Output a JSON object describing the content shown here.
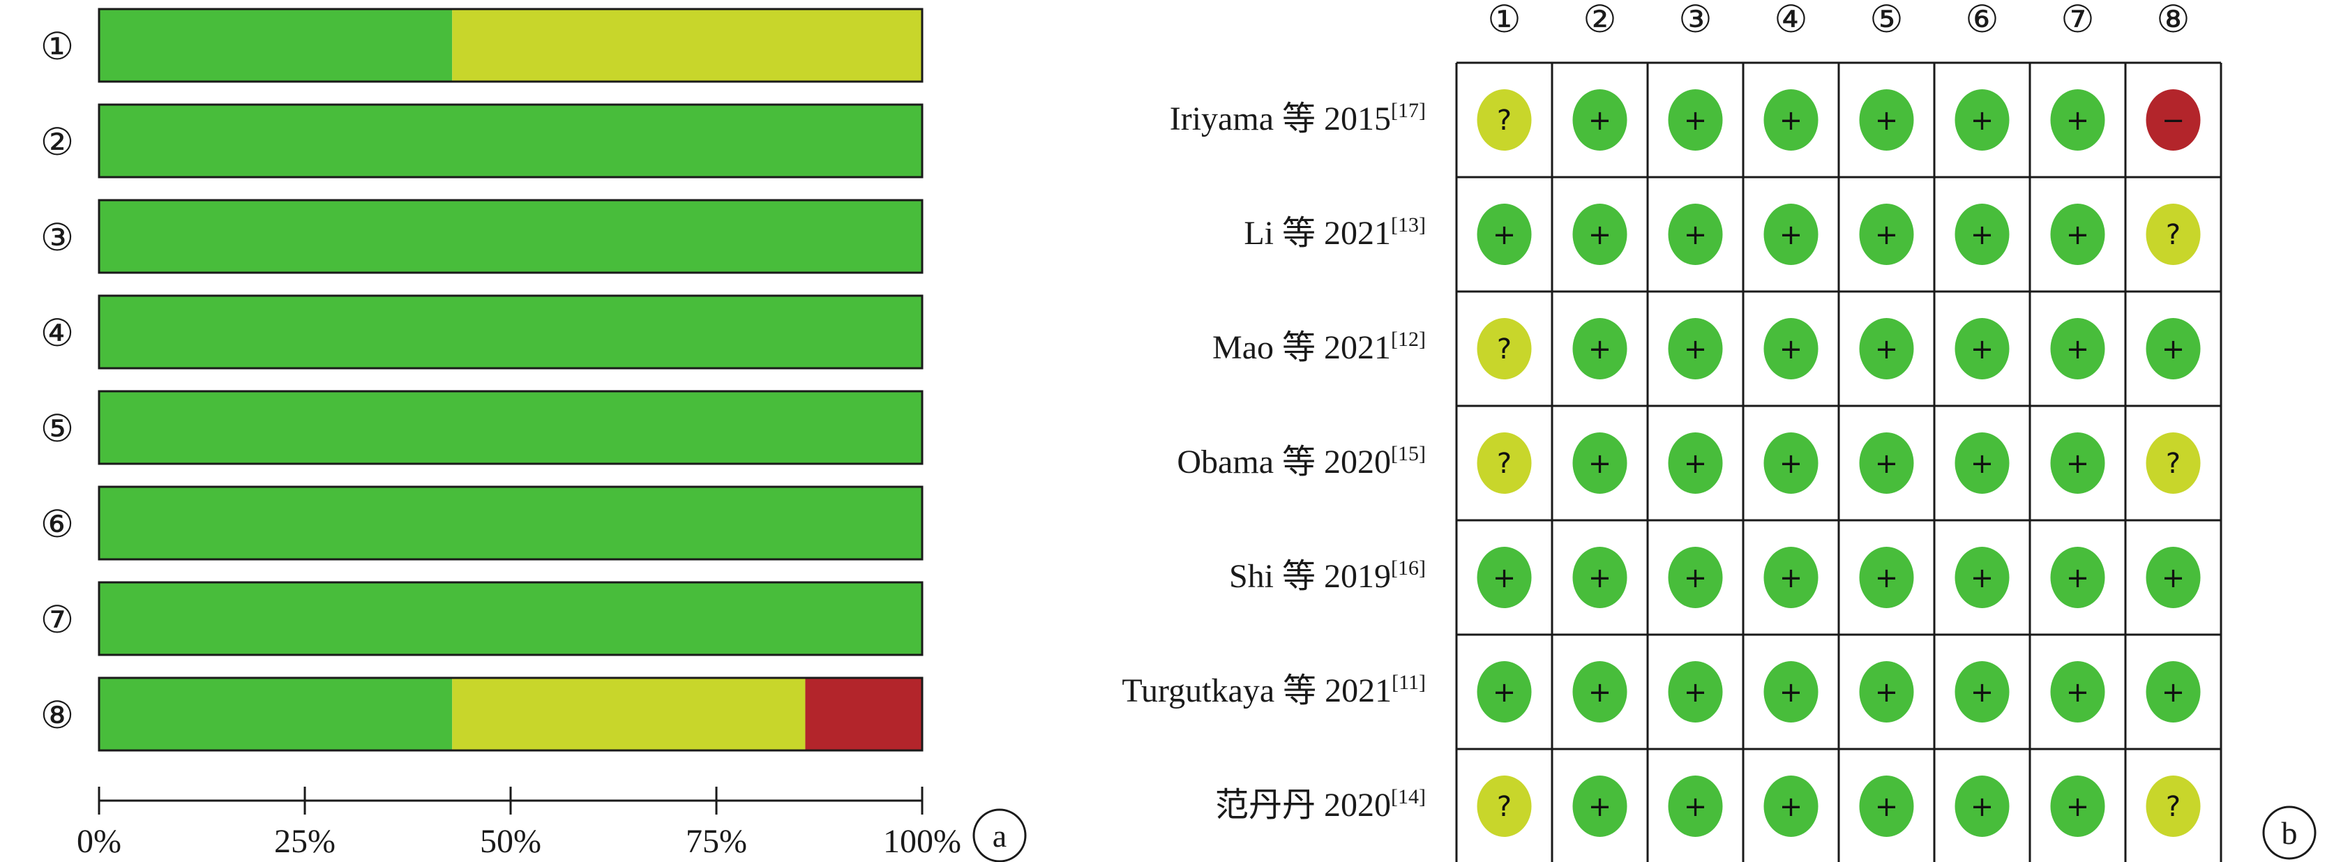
{
  "colors": {
    "low": "#48bd3b",
    "unclear": "#c8d62b",
    "high": "#b3252b",
    "border": "#1a1a1a",
    "symbol": "#111111"
  },
  "symbols": {
    "low": "+",
    "unclear": "?",
    "high": "−"
  },
  "chart_data": [
    {
      "type": "bar",
      "orientation": "horizontal",
      "stacked": true,
      "panel_label": "a",
      "categories": [
        "①",
        "②",
        "③",
        "④",
        "⑤",
        "⑥",
        "⑦",
        "⑧"
      ],
      "series": [
        {
          "key": "low",
          "values": [
            42.9,
            100,
            100,
            100,
            100,
            100,
            100,
            42.9
          ]
        },
        {
          "key": "unclear",
          "values": [
            57.1,
            0,
            0,
            0,
            0,
            0,
            0,
            42.9
          ]
        },
        {
          "key": "high",
          "values": [
            0,
            0,
            0,
            0,
            0,
            0,
            0,
            14.2
          ]
        }
      ],
      "xlim": [
        0,
        100
      ],
      "xticks": [
        0,
        25,
        50,
        75,
        100
      ],
      "xtick_labels": [
        "0%",
        "25%",
        "50%",
        "75%",
        "100%"
      ]
    },
    {
      "type": "table",
      "panel_label": "b",
      "columns": [
        "①",
        "②",
        "③",
        "④",
        "⑤",
        "⑥",
        "⑦",
        "⑧"
      ],
      "rows": [
        {
          "name": "Iriyama 等 2015",
          "ref": "[17]",
          "values": [
            "unclear",
            "low",
            "low",
            "low",
            "low",
            "low",
            "low",
            "high"
          ]
        },
        {
          "name": "Li 等 2021",
          "ref": "[13]",
          "values": [
            "low",
            "low",
            "low",
            "low",
            "low",
            "low",
            "low",
            "unclear"
          ]
        },
        {
          "name": "Mao 等 2021",
          "ref": "[12]",
          "values": [
            "unclear",
            "low",
            "low",
            "low",
            "low",
            "low",
            "low",
            "low"
          ]
        },
        {
          "name": "Obama 等 2020",
          "ref": "[15]",
          "values": [
            "unclear",
            "low",
            "low",
            "low",
            "low",
            "low",
            "low",
            "unclear"
          ]
        },
        {
          "name": "Shi 等 2019",
          "ref": "[16]",
          "values": [
            "low",
            "low",
            "low",
            "low",
            "low",
            "low",
            "low",
            "low"
          ]
        },
        {
          "name": "Turgutkaya 等 2021",
          "ref": "[11]",
          "values": [
            "low",
            "low",
            "low",
            "low",
            "low",
            "low",
            "low",
            "low"
          ]
        },
        {
          "name": "范丹丹 2020",
          "ref": "[14]",
          "values": [
            "unclear",
            "low",
            "low",
            "low",
            "low",
            "low",
            "low",
            "unclear"
          ]
        }
      ]
    }
  ]
}
